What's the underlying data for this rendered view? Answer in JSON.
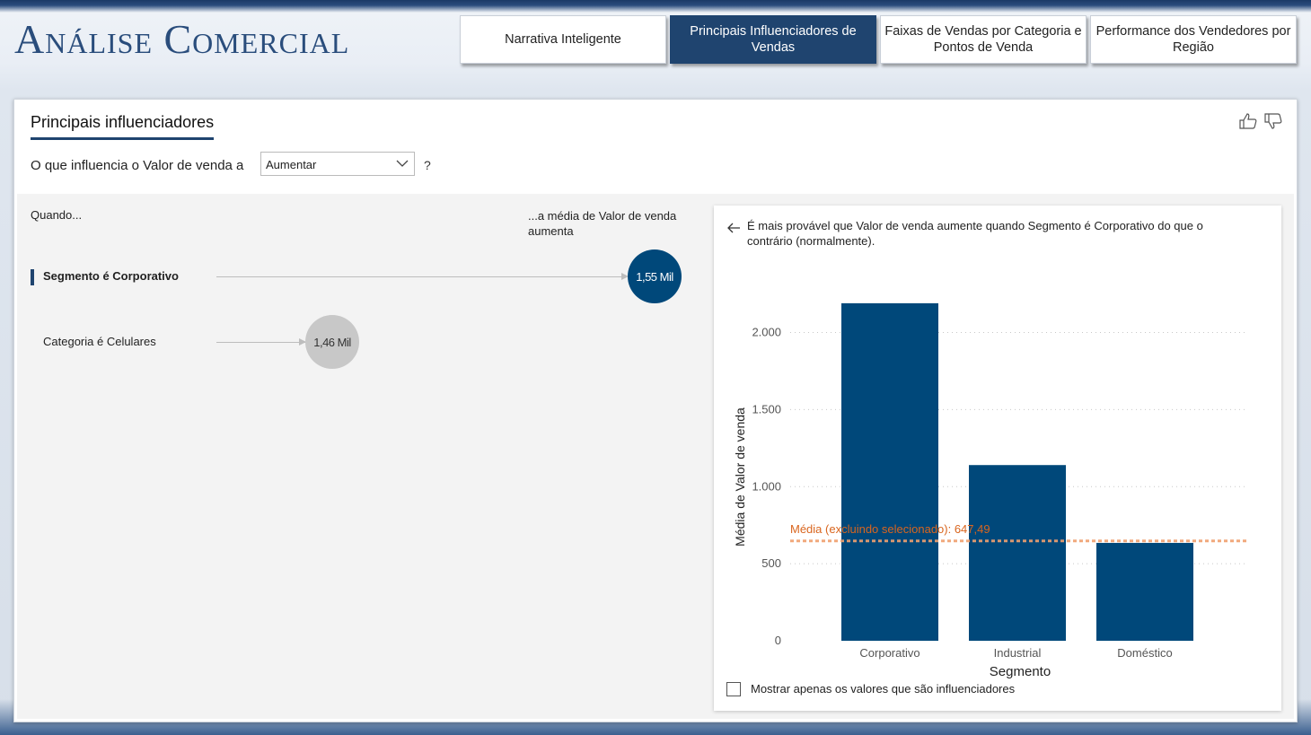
{
  "app": {
    "title": "Análise Comercial"
  },
  "tabs": [
    {
      "label": "Narrativa Inteligente",
      "active": false
    },
    {
      "label": "Principais Influenciadores de Vendas",
      "active": true
    },
    {
      "label": "Faixas de Vendas por Categoria e Pontos de Venda",
      "active": false
    },
    {
      "label": "Performance dos Vendedores por Região",
      "active": false
    }
  ],
  "panel": {
    "title": "Principais influenciadores",
    "question_label": "O que influencia o Valor de venda a",
    "select_value": "Aumentar",
    "help": "?",
    "col_when": "Quando...",
    "col_avg": "...a média de Valor de venda aumenta",
    "influencers": [
      {
        "label": "Segmento é Corporativo",
        "value": "1,55 Mil",
        "numeric": 1.55,
        "selected": true
      },
      {
        "label": "Categoria é Celulares",
        "value": "1,46 Mil",
        "numeric": 1.46,
        "selected": false
      }
    ],
    "icons": [
      "thumbs-up-icon",
      "thumbs-down-icon",
      "back-arrow-icon",
      "chevron-down-icon"
    ]
  },
  "detail": {
    "description": "É mais provável que Valor de venda aumente quando Segmento é Corporativo do que o contrário (normalmente).",
    "checkbox_label": "Mostrar apenas os valores que são influenciadores",
    "checkbox_checked": false
  },
  "chart_data": {
    "type": "bar",
    "categories": [
      "Corporativo",
      "Industrial",
      "Doméstico"
    ],
    "values": [
      2190,
      1140,
      635
    ],
    "xlabel": "Segmento",
    "ylabel": "Média de Valor de venda",
    "ylim": [
      0,
      2300
    ],
    "yticks": [
      0,
      500,
      1000,
      1500,
      2000
    ],
    "ytick_labels": [
      "0",
      "500",
      "1.000",
      "1.500",
      "2.000"
    ],
    "grid": true,
    "reference_line": {
      "value": 647.49,
      "label": "Média (excluindo selecionado): 647,49",
      "color": "#f0a070"
    },
    "bar_color": "#00487a"
  },
  "colors": {
    "accent": "#1f446f",
    "bubble_primary": "#00487a",
    "bubble_secondary": "#c8c8c8",
    "reference_label": "#d9651e"
  }
}
